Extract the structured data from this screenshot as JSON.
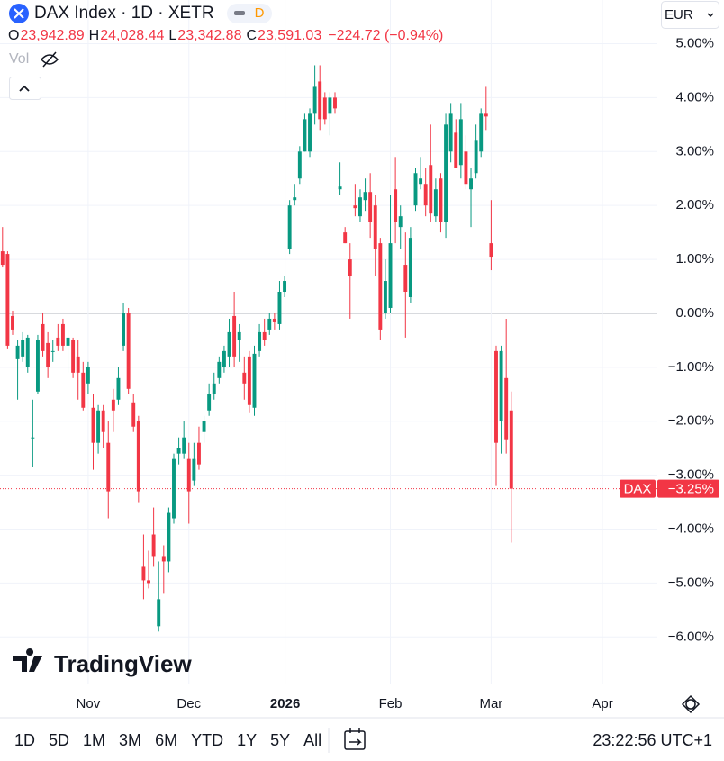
{
  "header": {
    "symbol": "DAX Index · 1D · XETR",
    "badge": "D",
    "ohlc": [
      {
        "key": "O",
        "value": "23,942.89"
      },
      {
        "key": "H",
        "value": "24,028.44"
      },
      {
        "key": "L",
        "value": "23,342.88"
      },
      {
        "key": "C",
        "value": "23,591.03"
      }
    ],
    "change": "−224.72 (−0.94%)",
    "vol": "Vol",
    "currency": "EUR"
  },
  "watermark": "TradingView",
  "toolbar": {
    "ranges": [
      "1D",
      "5D",
      "1M",
      "3M",
      "6M",
      "YTD",
      "1Y",
      "5Y",
      "All"
    ],
    "clock": "23:22:56 UTC+1"
  },
  "chart_data": {
    "type": "candlestick",
    "up_color": "#089981",
    "down_color": "#f23645",
    "open": [
      1.15,
      1.1,
      -0.05,
      -0.85,
      -0.8,
      -1.0,
      -2.3,
      -1.45,
      -0.2,
      -0.55,
      -0.7,
      -0.45,
      -0.2,
      -0.6,
      -0.5,
      -0.8,
      -1.1,
      -1.3,
      -1.75,
      -2.4,
      -1.8,
      -2.4,
      -1.6,
      -1.6,
      -0.6,
      0.0,
      -1.65,
      -2.0,
      -4.7,
      -4.95,
      -4.1,
      -5.8,
      -4.5,
      -4.6,
      -3.8,
      -2.6,
      -2.6,
      -2.7,
      -3.1,
      -2.4,
      -2.2,
      -1.8,
      -1.5,
      -1.2,
      -1.0,
      -0.8,
      -0.05,
      -0.5,
      -1.1,
      -0.8,
      -1.75,
      -0.7,
      -0.35,
      -0.3,
      -0.1,
      -0.2,
      0.4,
      1.2,
      2.1,
      2.5,
      3.0,
      3.0,
      3.7,
      4.3,
      4.0,
      3.7,
      4.0,
      2.3,
      1.5,
      1.0,
      2.0,
      1.8,
      2.1,
      2.25,
      2.0,
      1.3,
      0.0,
      0.1,
      2.3,
      1.6,
      0.9,
      0.3,
      2.0,
      2.4,
      2.4,
      2.75,
      1.8,
      2.5,
      1.7,
      3.0,
      3.35,
      2.75,
      3.0,
      2.3,
      2.6,
      3.0,
      3.7,
      1.3,
      -0.7,
      -2.0,
      -1.2,
      -1.8
    ],
    "high": [
      1.6,
      1.15,
      0.05,
      -0.5,
      -0.35,
      -0.4,
      -1.6,
      -0.4,
      0.0,
      -0.35,
      -0.5,
      -0.2,
      -0.1,
      -0.3,
      -0.45,
      -0.5,
      -0.9,
      -0.9,
      -1.5,
      -1.7,
      -1.7,
      -2.0,
      -1.4,
      -1.0,
      0.2,
      0.1,
      -1.5,
      -1.9,
      -4.1,
      -4.4,
      -3.6,
      -4.6,
      -4.3,
      -3.6,
      -2.6,
      -2.3,
      -2.0,
      -2.4,
      -2.4,
      -2.1,
      -1.9,
      -1.3,
      -1.1,
      -0.8,
      -0.6,
      -0.1,
      0.4,
      -0.2,
      -0.8,
      -0.7,
      -0.6,
      -0.2,
      -0.1,
      0.0,
      0.0,
      0.6,
      0.7,
      2.1,
      2.4,
      3.1,
      3.7,
      3.8,
      4.6,
      4.6,
      4.1,
      4.1,
      4.1,
      2.8,
      1.6,
      1.3,
      2.4,
      2.3,
      2.5,
      2.6,
      2.2,
      1.4,
      1.0,
      2.2,
      2.9,
      2.0,
      1.5,
      1.6,
      2.7,
      2.9,
      2.7,
      3.5,
      2.5,
      2.6,
      3.7,
      3.9,
      3.6,
      3.9,
      3.3,
      2.7,
      3.5,
      3.8,
      4.2,
      2.1,
      -0.6,
      -0.6,
      -0.1,
      -1.45
    ],
    "low": [
      0.85,
      -0.65,
      -0.4,
      -1.6,
      -0.9,
      -1.1,
      -2.85,
      -1.5,
      -0.8,
      -1.2,
      -0.9,
      -0.7,
      -0.7,
      -1.1,
      -1.2,
      -1.6,
      -1.8,
      -1.5,
      -2.9,
      -2.6,
      -2.5,
      -3.8,
      -2.2,
      -1.7,
      -0.7,
      -1.5,
      -2.2,
      -3.5,
      -5.3,
      -5.1,
      -4.7,
      -5.9,
      -5.2,
      -4.8,
      -3.9,
      -2.8,
      -2.7,
      -3.9,
      -3.2,
      -2.9,
      -2.4,
      -1.9,
      -1.6,
      -1.3,
      -1.1,
      -1.0,
      -1.0,
      -0.9,
      -1.6,
      -1.85,
      -1.9,
      -0.8,
      -0.6,
      -0.4,
      -0.3,
      -0.3,
      0.3,
      1.1,
      2.0,
      2.4,
      3.0,
      2.9,
      3.5,
      3.4,
      3.5,
      3.3,
      3.7,
      2.2,
      1.3,
      -0.1,
      1.8,
      1.7,
      1.9,
      1.4,
      0.7,
      -0.5,
      -0.1,
      0.0,
      1.3,
      1.2,
      -0.45,
      0.2,
      1.9,
      2.3,
      1.8,
      1.7,
      1.7,
      1.5,
      1.4,
      2.8,
      2.7,
      2.5,
      2.3,
      1.6,
      2.5,
      2.9,
      3.4,
      0.8,
      -3.2,
      -2.6,
      -2.6,
      -4.25
    ],
    "close": [
      0.9,
      -0.6,
      -0.3,
      -0.6,
      -0.5,
      -0.45,
      -2.3,
      -0.5,
      -0.7,
      -1.0,
      -0.7,
      -0.6,
      -0.6,
      -0.45,
      -1.1,
      -1.1,
      -1.75,
      -1.0,
      -2.4,
      -1.8,
      -2.2,
      -3.3,
      -1.8,
      -1.2,
      0.0,
      -1.4,
      -2.1,
      -3.3,
      -4.95,
      -5.0,
      -4.5,
      -5.3,
      -4.6,
      -3.7,
      -2.7,
      -2.5,
      -2.3,
      -3.3,
      -2.7,
      -2.8,
      -2.0,
      -1.5,
      -1.3,
      -0.9,
      -0.7,
      -0.35,
      -0.8,
      -0.35,
      -1.3,
      -1.7,
      -0.75,
      -0.35,
      -0.5,
      -0.1,
      -0.15,
      0.4,
      0.6,
      2.0,
      2.15,
      3.0,
      3.6,
      3.7,
      4.2,
      3.6,
      3.6,
      4.0,
      3.8,
      2.35,
      1.3,
      0.7,
      1.95,
      2.15,
      2.25,
      1.7,
      1.2,
      -0.3,
      0.6,
      1.3,
      1.7,
      1.8,
      0.4,
      1.4,
      2.6,
      2.5,
      2.0,
      1.85,
      2.3,
      1.7,
      3.5,
      3.7,
      2.7,
      3.6,
      2.4,
      2.5,
      3.2,
      3.7,
      3.65,
      1.05,
      -2.4,
      -0.7,
      -2.35,
      -3.25
    ],
    "xlim": [
      -0.5,
      130
    ],
    "ylim": [
      -6.88,
      5.81
    ],
    "xticks": [
      {
        "value": 17,
        "label": "Nov"
      },
      {
        "value": 37,
        "label": "Dec"
      },
      {
        "value": 56.1,
        "label": "2026"
      },
      {
        "value": 77,
        "label": "Feb"
      },
      {
        "value": 97,
        "label": "Mar"
      },
      {
        "value": 119.1,
        "label": "Apr"
      }
    ],
    "yticks": [
      {
        "value": 5,
        "label": "5.00%"
      },
      {
        "value": 4,
        "label": "4.00%"
      },
      {
        "value": 3,
        "label": "3.00%"
      },
      {
        "value": 2,
        "label": "2.00%"
      },
      {
        "value": 1,
        "label": "1.00%"
      },
      {
        "value": 0,
        "label": "0.00%"
      },
      {
        "value": -1,
        "label": "−1.00%"
      },
      {
        "value": -2,
        "label": "−2.00%"
      },
      {
        "value": -3,
        "label": "−3.00%"
      },
      {
        "value": -4,
        "label": "−4.00%"
      },
      {
        "value": -5,
        "label": "−5.00%"
      },
      {
        "value": -6,
        "label": "−6.00%"
      }
    ],
    "last": {
      "name": "DAX",
      "value": -3.25,
      "label": "−3.25%"
    }
  }
}
